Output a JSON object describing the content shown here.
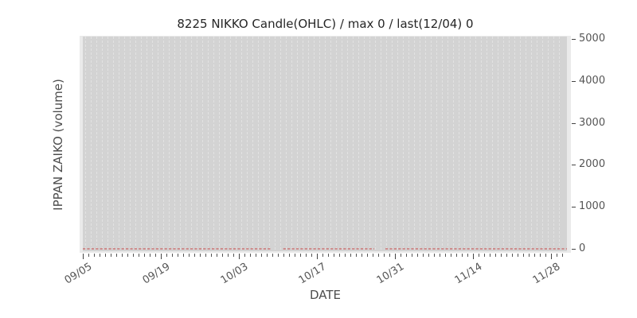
{
  "chart_data": {
    "type": "line",
    "title": "8225 NIKKO Candle(OHLC) / max 0 / last(12/04) 0",
    "xlabel": "DATE",
    "ylabel": "IPPAN ZAIKO (volume)",
    "x_major_tick_labels": [
      "09/05",
      "09/19",
      "10/03",
      "10/17",
      "10/31",
      "11/14",
      "11/28"
    ],
    "x_major_tick_day_indices": [
      0,
      14,
      28,
      42,
      56,
      70,
      84
    ],
    "x_minor_tick_count": 87,
    "x_gridline_count": 86,
    "y_ticks": [
      0,
      1000,
      2000,
      3000,
      4000,
      5000
    ],
    "y_tick_labels": [
      "0",
      "1000",
      "2000",
      "3000",
      "4000",
      "5000"
    ],
    "ylim": [
      0,
      5000
    ],
    "grid": {
      "vertical_daily_dashed": true,
      "horizontal": false
    },
    "legend_position": "none",
    "series": [
      {
        "name": "IPPAN ZAIKO volume zero line",
        "constant_value": 0,
        "linestyle": "dashed",
        "color": "#c96060",
        "segments_fraction": [
          [
            0.0,
            0.388
          ],
          [
            0.414,
            0.602
          ],
          [
            0.625,
            1.0
          ]
        ]
      }
    ],
    "annotations": {
      "max_value": 0,
      "last_date": "12/04",
      "last_value": 0
    }
  },
  "colors": {
    "figure_bg": "#ffffff",
    "axes_bg": "#eaeaea",
    "data_region_bg": "#d3d3d3",
    "gridline": "#e2e2e2",
    "zero_line": "#c96060",
    "tick_mark": "#444444",
    "tick_label": "#555555",
    "title_text": "#262626",
    "axis_label_text": "#4d4d4d"
  }
}
